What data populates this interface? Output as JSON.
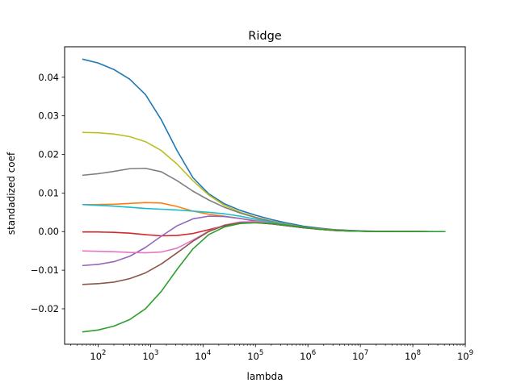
{
  "chart_data": {
    "type": "line",
    "title": "Ridge",
    "xlabel": "lambda",
    "ylabel": "standadized coef",
    "xscale": "log",
    "xlim": [
      23,
      1000000000
    ],
    "ylim": [
      -0.0292,
      0.0479
    ],
    "grid": false,
    "x_ticks": [
      100,
      1000,
      10000,
      100000,
      1000000,
      10000000,
      100000000,
      1000000000
    ],
    "x_tick_labels": [
      {
        "base": "10",
        "exp": "2"
      },
      {
        "base": "10",
        "exp": "3"
      },
      {
        "base": "10",
        "exp": "4"
      },
      {
        "base": "10",
        "exp": "5"
      },
      {
        "base": "10",
        "exp": "6"
      },
      {
        "base": "10",
        "exp": "7"
      },
      {
        "base": "10",
        "exp": "8"
      },
      {
        "base": "10",
        "exp": "9"
      }
    ],
    "y_ticks": [
      -0.02,
      -0.01,
      0.0,
      0.01,
      0.02,
      0.03,
      0.04
    ],
    "y_tick_labels": [
      "−0.02",
      "−0.01",
      "0.00",
      "0.01",
      "0.02",
      "0.03",
      "0.04"
    ],
    "x": [
      50,
      100,
      200,
      400,
      800,
      1600,
      3200,
      6400,
      12800,
      25600,
      51200,
      102400,
      204800,
      409600,
      819200,
      1638400,
      3276800,
      6553600,
      13107200,
      26214400,
      52428800,
      104857600,
      209715200,
      419430400
    ],
    "series": [
      {
        "color": "#1f77b4",
        "values": [
          0.0447,
          0.0437,
          0.042,
          0.0395,
          0.0355,
          0.029,
          0.021,
          0.014,
          0.0098,
          0.0072,
          0.0055,
          0.0042,
          0.0031,
          0.0022,
          0.0014,
          0.0009,
          0.0005,
          0.0003,
          0.00015,
          8e-05,
          4e-05,
          2e-05,
          1e-05,
          0.0
        ]
      },
      {
        "color": "#bcbd22",
        "values": [
          0.0257,
          0.0256,
          0.0253,
          0.0246,
          0.0233,
          0.021,
          0.0175,
          0.0132,
          0.0095,
          0.0068,
          0.005,
          0.0037,
          0.0027,
          0.0019,
          0.0012,
          0.0007,
          0.0004,
          0.0002,
          0.0001,
          5e-05,
          2e-05,
          1e-05,
          0.0,
          0.0
        ]
      },
      {
        "color": "#7f7f7f",
        "values": [
          0.0146,
          0.015,
          0.0156,
          0.0163,
          0.0164,
          0.0155,
          0.0132,
          0.0105,
          0.0082,
          0.0063,
          0.0048,
          0.0036,
          0.0026,
          0.0018,
          0.0012,
          0.0007,
          0.0004,
          0.0002,
          0.0001,
          5e-05,
          2e-05,
          1e-05,
          0.0,
          0.0
        ]
      },
      {
        "color": "#ff7f0e",
        "values": [
          0.007,
          0.007,
          0.0071,
          0.0073,
          0.0075,
          0.0074,
          0.0065,
          0.0053,
          0.0045,
          0.004,
          0.0034,
          0.0028,
          0.0022,
          0.0016,
          0.0011,
          0.0007,
          0.0004,
          0.0002,
          0.0001,
          5e-05,
          2e-05,
          1e-05,
          0.0,
          0.0
        ]
      },
      {
        "color": "#17becf",
        "values": [
          0.007,
          0.0068,
          0.0066,
          0.0063,
          0.006,
          0.0058,
          0.0056,
          0.0053,
          0.005,
          0.0046,
          0.004,
          0.0032,
          0.0024,
          0.0017,
          0.0011,
          0.0006,
          0.0003,
          0.0002,
          0.0001,
          4e-05,
          2e-05,
          1e-05,
          0.0,
          0.0
        ]
      },
      {
        "color": "#d62728",
        "values": [
          -0.0001,
          -0.0001,
          -0.0002,
          -0.0004,
          -0.0008,
          -0.0011,
          -0.001,
          -0.0005,
          0.0005,
          0.0015,
          0.0022,
          0.0023,
          0.002,
          0.0015,
          0.001,
          0.0006,
          0.0003,
          0.00015,
          8e-05,
          4e-05,
          2e-05,
          1e-05,
          0.0,
          0.0
        ]
      },
      {
        "color": "#9467bd",
        "values": [
          -0.0088,
          -0.0085,
          -0.0078,
          -0.0064,
          -0.0041,
          -0.0012,
          0.0015,
          0.0033,
          0.004,
          0.0039,
          0.0034,
          0.0027,
          0.0021,
          0.0015,
          0.001,
          0.0006,
          0.0003,
          0.00015,
          8e-05,
          4e-05,
          2e-05,
          1e-05,
          0.0,
          0.0
        ]
      },
      {
        "color": "#e377c2",
        "values": [
          -0.005,
          -0.0051,
          -0.0052,
          -0.0054,
          -0.0055,
          -0.0053,
          -0.0043,
          -0.0022,
          0.0001,
          0.0017,
          0.0025,
          0.0026,
          0.0022,
          0.0016,
          0.001,
          0.0006,
          0.0003,
          0.00015,
          8e-05,
          4e-05,
          2e-05,
          1e-05,
          0.0,
          0.0
        ]
      },
      {
        "color": "#8c564b",
        "values": [
          -0.0137,
          -0.0135,
          -0.0131,
          -0.0122,
          -0.0107,
          -0.0084,
          -0.0055,
          -0.0025,
          0.0,
          0.0016,
          0.0023,
          0.0023,
          0.002,
          0.0015,
          0.001,
          0.0006,
          0.0003,
          0.00015,
          8e-05,
          4e-05,
          2e-05,
          1e-05,
          0.0,
          0.0
        ]
      },
      {
        "color": "#2ca02c",
        "values": [
          -0.026,
          -0.0255,
          -0.0245,
          -0.0228,
          -0.02,
          -0.0155,
          -0.0098,
          -0.0045,
          -0.0008,
          0.0012,
          0.0021,
          0.0023,
          0.0021,
          0.0016,
          0.0011,
          0.0006,
          0.0003,
          0.00015,
          8e-05,
          4e-05,
          2e-05,
          1e-05,
          0.0,
          0.0
        ]
      }
    ]
  }
}
